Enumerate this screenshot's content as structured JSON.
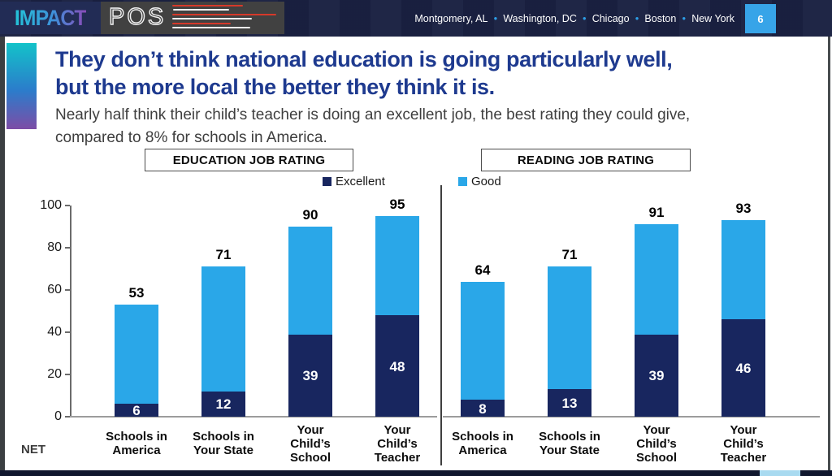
{
  "header": {
    "logo_impact": "IMPACT",
    "logo_pos": "POS",
    "cities": [
      "Montgomery, AL",
      "Washington, DC",
      "Chicago",
      "Boston",
      "New York"
    ],
    "page_number": "6",
    "accent_blue": "#37a4e8",
    "bar_navy": "#1a2142"
  },
  "title": "They don’t think national education is going particularly well,\nbut the more local the better they think it is.",
  "subtitle": "Nearly half think their child’s teacher is doing an excellent job, the best rating they could give,\ncompared to 8% for schools in America.",
  "net_label": "NET",
  "legend": [
    {
      "label": "Excellent",
      "color": "#18265f"
    },
    {
      "label": "Good",
      "color": "#2aa7e8"
    }
  ],
  "chart_data": [
    {
      "type": "bar",
      "stacked": true,
      "title": "EDUCATION JOB RATING",
      "categories": [
        "Schools in\nAmerica",
        "Schools in\nYour State",
        "Your\nChild’s\nSchool",
        "Your\nChild’s\nTeacher"
      ],
      "series": [
        {
          "name": "Excellent",
          "color": "#18265f",
          "values": [
            6,
            12,
            39,
            48
          ]
        },
        {
          "name": "Good",
          "color": "#2aa7e8",
          "values": [
            47,
            59,
            51,
            47
          ]
        }
      ],
      "net_totals": [
        53,
        71,
        90,
        95
      ],
      "ylim": [
        0,
        100
      ],
      "y_ticks": [
        0,
        20,
        40,
        60,
        80,
        100
      ],
      "ylabel": "",
      "xlabel": "",
      "grid": false,
      "legend_position": "top-center",
      "value_labels": "Excellent values shown in white inside navy segments; NET totals shown in black above bars"
    },
    {
      "type": "bar",
      "stacked": true,
      "title": "READING JOB RATING",
      "categories": [
        "Schools in\nAmerica",
        "Schools in\nYour State",
        "Your\nChild’s\nSchool",
        "Your\nChild’s\nTeacher"
      ],
      "series": [
        {
          "name": "Excellent",
          "color": "#18265f",
          "values": [
            8,
            13,
            39,
            46
          ]
        },
        {
          "name": "Good",
          "color": "#2aa7e8",
          "values": [
            56,
            58,
            52,
            47
          ]
        }
      ],
      "net_totals": [
        64,
        71,
        91,
        93
      ],
      "ylim": [
        0,
        100
      ],
      "y_ticks": [
        0,
        20,
        40,
        60,
        80,
        100
      ],
      "grid": false
    }
  ]
}
